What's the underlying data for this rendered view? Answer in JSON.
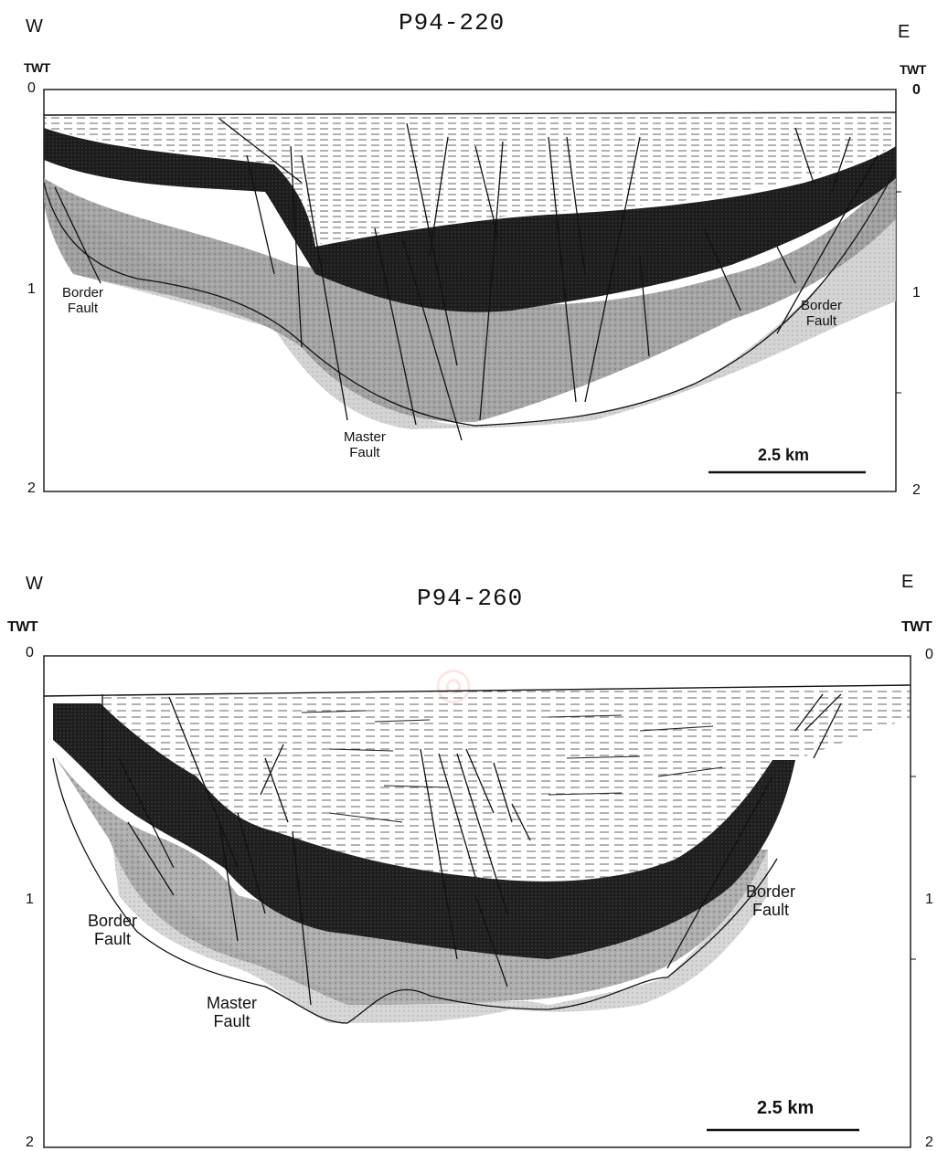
{
  "sections": [
    {
      "id": "P94-220",
      "title": "P94-220",
      "west": "W",
      "east": "E",
      "axis_left": "TWT",
      "axis_right": "TWT",
      "ticks_left": [
        "0",
        "1",
        "2"
      ],
      "ticks_right": [
        "0",
        "1",
        "2"
      ],
      "faults": {
        "border_west": [
          "Border",
          "Fault"
        ],
        "border_east": [
          "Border",
          "Fault"
        ],
        "master": [
          "Master",
          "Fault"
        ]
      },
      "scale_bar": "2.5 km"
    },
    {
      "id": "P94-260",
      "title": "P94-260",
      "west": "W",
      "east": "E",
      "axis_left": "TWT",
      "axis_right": "TWT",
      "ticks_left": [
        "0",
        "1",
        "2"
      ],
      "ticks_right": [
        "0",
        "1",
        "2"
      ],
      "faults": {
        "border_west": [
          "Border",
          "Fault"
        ],
        "border_east": [
          "Border",
          "Fault"
        ],
        "master": [
          "Master",
          "Fault"
        ]
      },
      "scale_bar": "2.5 km"
    }
  ],
  "colors": {
    "dark_layer": "#1a1a1a",
    "mid_layer": "#8a8a8a",
    "light_layer": "#d0d0d0",
    "line": "#111111"
  }
}
